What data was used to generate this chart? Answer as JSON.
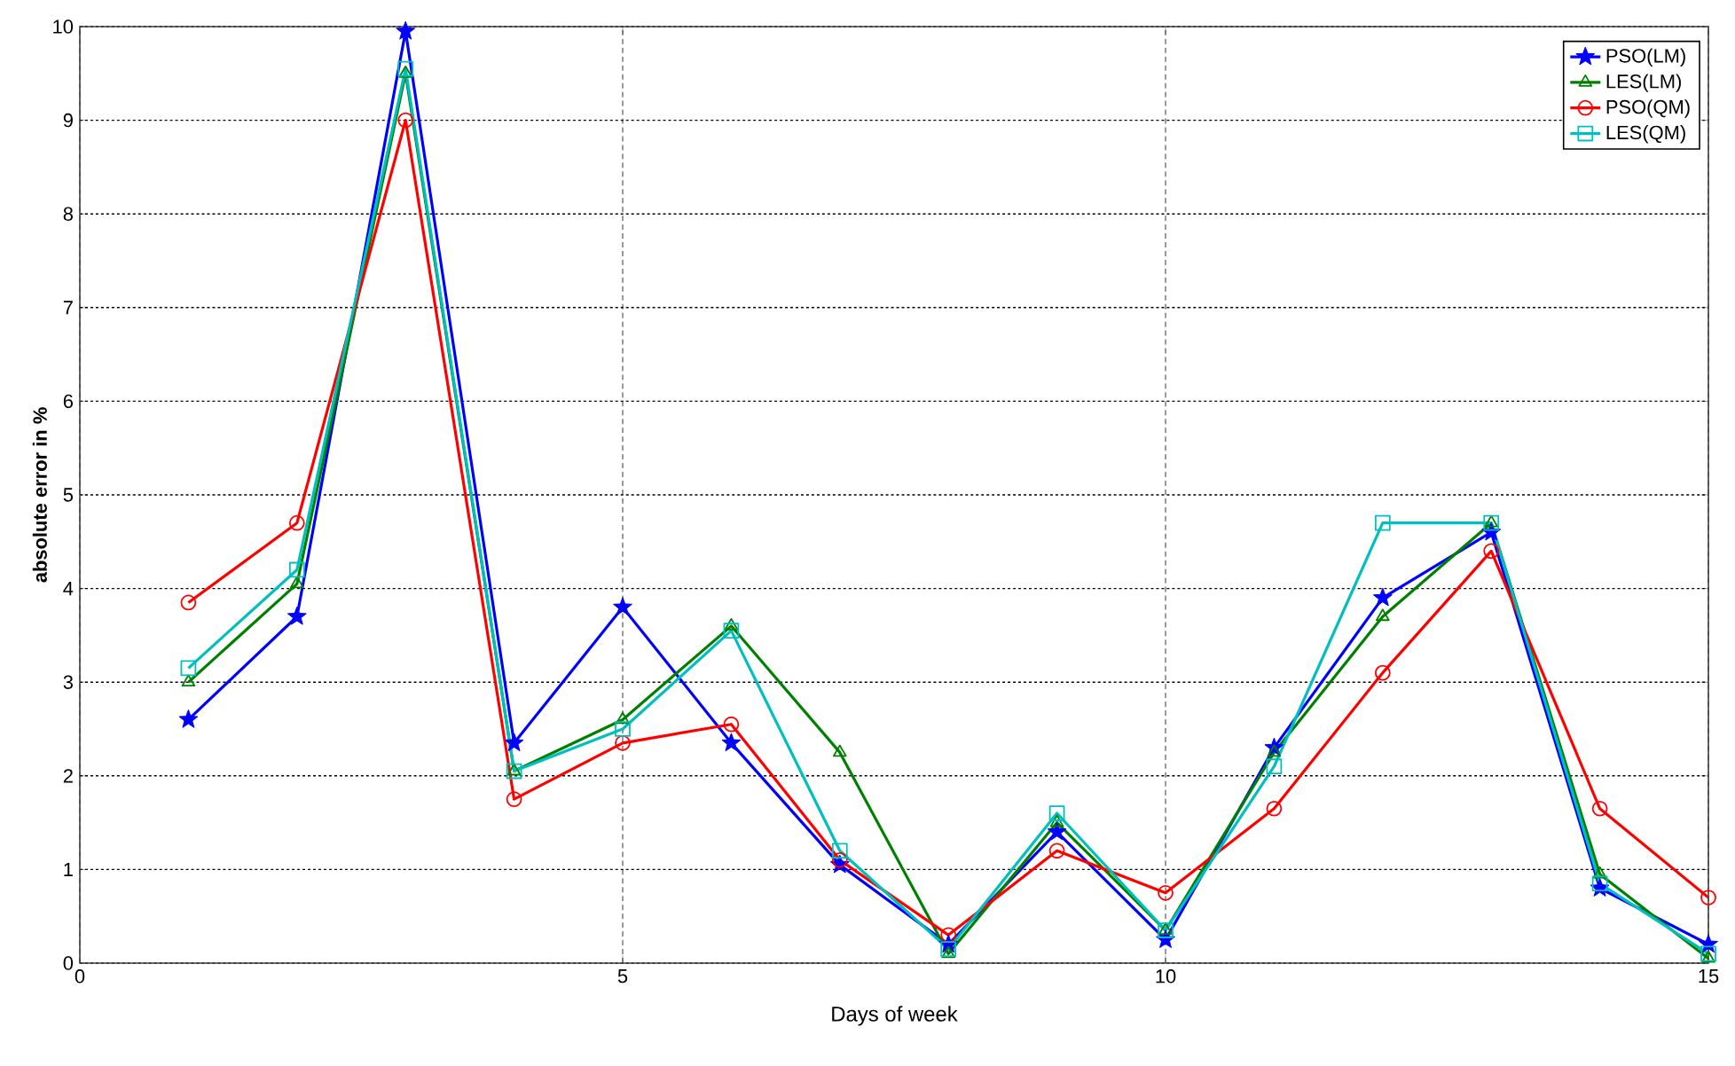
{
  "chart_data": {
    "type": "line",
    "xlabel": "Days of week",
    "ylabel": "absolute error in %",
    "x": [
      1,
      2,
      3,
      4,
      5,
      6,
      7,
      8,
      9,
      10,
      11,
      12,
      13,
      14,
      15
    ],
    "series": [
      {
        "name": "PSO(LM)",
        "color": "#0000ff",
        "marker": "star",
        "values": [
          2.6,
          3.7,
          9.95,
          2.35,
          3.8,
          2.35,
          1.05,
          0.2,
          1.4,
          0.25,
          2.3,
          3.9,
          4.6,
          0.8,
          0.2
        ]
      },
      {
        "name": "LES(LM)",
        "color": "#008000",
        "marker": "triangle",
        "values": [
          3.0,
          4.05,
          9.5,
          2.05,
          2.6,
          3.6,
          2.25,
          0.1,
          1.5,
          0.35,
          2.25,
          3.7,
          4.7,
          0.95,
          0.05
        ]
      },
      {
        "name": "PSO(QM)",
        "color": "#ff0000",
        "marker": "circle",
        "values": [
          3.85,
          4.7,
          9.0,
          1.75,
          2.35,
          2.55,
          1.1,
          0.3,
          1.2,
          0.75,
          1.65,
          3.1,
          4.4,
          1.65,
          0.7
        ]
      },
      {
        "name": "LES(QM)",
        "color": "#00bfbf",
        "marker": "square",
        "values": [
          3.15,
          4.2,
          9.55,
          2.05,
          2.5,
          3.55,
          1.2,
          0.15,
          1.6,
          0.35,
          2.1,
          4.7,
          4.7,
          0.85,
          0.1
        ]
      }
    ],
    "xlim": [
      0,
      15
    ],
    "xticks": [
      0,
      5,
      10,
      15
    ],
    "ylim": [
      0,
      10
    ],
    "yticks": [
      0,
      1,
      2,
      3,
      4,
      5,
      6,
      7,
      8,
      9,
      10
    ],
    "grid": true,
    "legend": "top right",
    "line_style": "solid"
  }
}
